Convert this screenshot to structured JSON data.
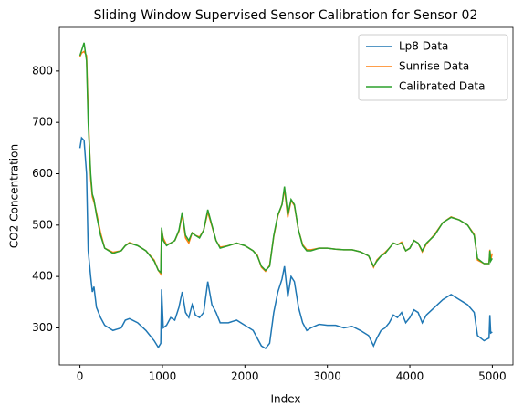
{
  "chart_data": {
    "type": "line",
    "title": "Sliding Window Supervised Sensor Calibration for Sensor 02",
    "xlabel": "Index",
    "ylabel": "CO2 Concentration",
    "x": [
      0,
      20,
      50,
      80,
      100,
      130,
      150,
      170,
      200,
      250,
      300,
      400,
      500,
      550,
      600,
      700,
      800,
      900,
      950,
      980,
      990,
      1010,
      1050,
      1100,
      1150,
      1200,
      1240,
      1280,
      1320,
      1360,
      1400,
      1450,
      1500,
      1550,
      1600,
      1650,
      1700,
      1800,
      1900,
      2000,
      2100,
      2150,
      2200,
      2250,
      2300,
      2350,
      2400,
      2450,
      2480,
      2520,
      2560,
      2600,
      2650,
      2700,
      2750,
      2800,
      2900,
      3000,
      3100,
      3200,
      3300,
      3400,
      3500,
      3560,
      3600,
      3650,
      3700,
      3750,
      3800,
      3850,
      3900,
      3950,
      4000,
      4050,
      4100,
      4150,
      4200,
      4300,
      4400,
      4500,
      4600,
      4700,
      4780,
      4820,
      4900,
      4960,
      4970,
      4980,
      4999
    ],
    "series": [
      {
        "name": "Lp8 Data",
        "color": "#1f77b4",
        "values": [
          650,
          670,
          665,
          600,
          450,
          400,
          370,
          380,
          340,
          320,
          305,
          295,
          300,
          315,
          318,
          310,
          295,
          275,
          262,
          270,
          375,
          300,
          305,
          320,
          315,
          340,
          370,
          330,
          320,
          345,
          325,
          320,
          330,
          390,
          345,
          330,
          310,
          310,
          315,
          305,
          295,
          280,
          265,
          260,
          270,
          330,
          370,
          395,
          420,
          360,
          400,
          390,
          340,
          310,
          295,
          300,
          307,
          305,
          305,
          300,
          303,
          295,
          285,
          265,
          280,
          295,
          300,
          310,
          325,
          320,
          330,
          310,
          320,
          335,
          330,
          310,
          325,
          340,
          355,
          365,
          355,
          345,
          330,
          285,
          275,
          280,
          325,
          290,
          292
        ]
      },
      {
        "name": "Sunrise Data",
        "color": "#ff7f0e",
        "values": [
          828,
          835,
          838,
          830,
          720,
          590,
          555,
          545,
          525,
          485,
          455,
          447,
          450,
          460,
          466,
          460,
          450,
          432,
          412,
          405,
          490,
          475,
          462,
          465,
          470,
          488,
          520,
          475,
          465,
          485,
          480,
          477,
          490,
          525,
          498,
          470,
          457,
          460,
          465,
          460,
          450,
          442,
          418,
          410,
          422,
          478,
          518,
          540,
          570,
          515,
          548,
          538,
          490,
          462,
          452,
          452,
          455,
          455,
          453,
          452,
          452,
          448,
          440,
          418,
          432,
          440,
          447,
          455,
          465,
          462,
          467,
          450,
          455,
          470,
          465,
          448,
          463,
          482,
          505,
          516,
          510,
          500,
          482,
          432,
          425,
          425,
          452,
          432,
          445
        ]
      },
      {
        "name": "Calibrated Data",
        "color": "#2ca02c",
        "values": [
          830,
          840,
          855,
          820,
          700,
          600,
          560,
          550,
          520,
          480,
          455,
          445,
          450,
          460,
          465,
          460,
          450,
          430,
          412,
          408,
          495,
          470,
          460,
          465,
          470,
          490,
          525,
          480,
          470,
          485,
          480,
          475,
          490,
          530,
          500,
          470,
          455,
          460,
          465,
          460,
          450,
          440,
          420,
          412,
          420,
          480,
          520,
          540,
          575,
          520,
          550,
          540,
          490,
          460,
          450,
          450,
          455,
          455,
          453,
          452,
          452,
          448,
          440,
          420,
          430,
          440,
          445,
          455,
          465,
          462,
          465,
          450,
          455,
          470,
          465,
          450,
          465,
          480,
          505,
          515,
          510,
          500,
          480,
          435,
          425,
          425,
          450,
          430,
          435
        ]
      }
    ],
    "xlim": [
      -250,
      5250
    ],
    "ylim": [
      228,
      885
    ],
    "xticks": [
      0,
      1000,
      2000,
      3000,
      4000,
      5000
    ],
    "yticks": [
      300,
      400,
      500,
      600,
      700,
      800
    ],
    "legend": "upper right"
  }
}
